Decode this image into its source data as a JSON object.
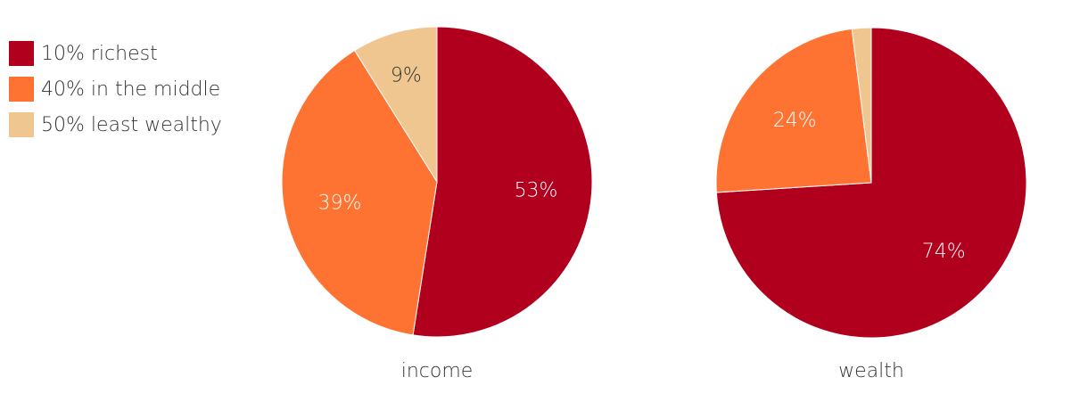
{
  "legend": [
    {
      "label": "10% richest",
      "color": "#b0001e"
    },
    {
      "label": "40% in the middle",
      "color": "#ff7332"
    },
    {
      "label": "50% least wealthy",
      "color": "#efc690"
    }
  ],
  "chart_data": [
    {
      "type": "pie",
      "title": "income",
      "categories": [
        "10% richest",
        "40% in the middle",
        "50% least wealthy"
      ],
      "values": [
        53,
        39,
        9
      ],
      "labels": [
        "53%",
        "39%",
        "9%"
      ],
      "colors": [
        "#b0001e",
        "#ff7332",
        "#efc690"
      ],
      "label_colors": [
        "#ffffff",
        "#ffffff",
        "#333333"
      ]
    },
    {
      "type": "pie",
      "title": "wealth",
      "categories": [
        "10% richest",
        "40% in the middle",
        "50% least wealthy"
      ],
      "values": [
        74,
        24,
        2
      ],
      "labels": [
        "74%",
        "24%",
        ""
      ],
      "colors": [
        "#b0001e",
        "#ff7332",
        "#efc690"
      ],
      "label_colors": [
        "#ffffff",
        "#ffffff",
        "#333333"
      ]
    }
  ]
}
